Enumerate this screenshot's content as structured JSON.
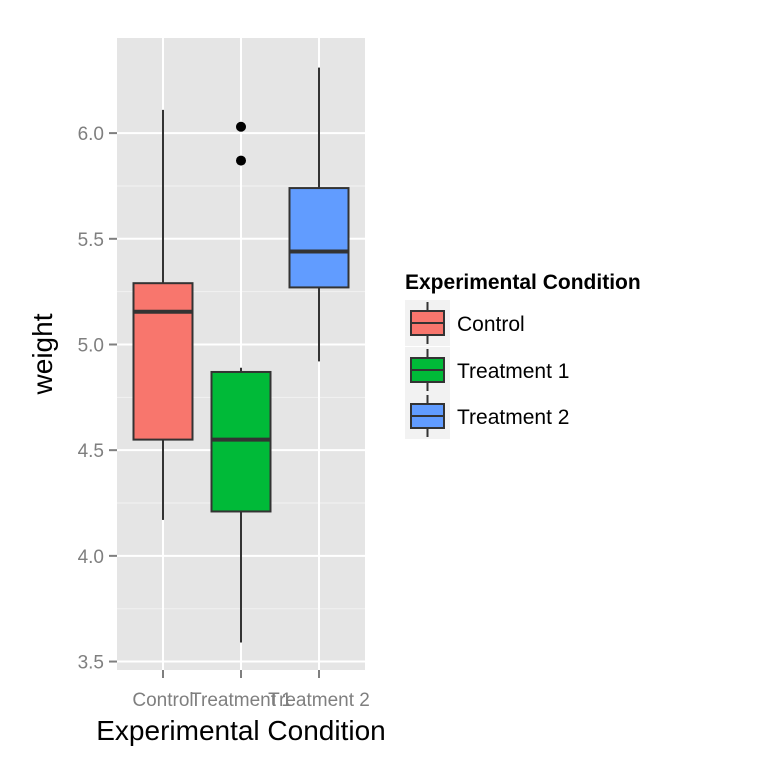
{
  "chart_data": {
    "type": "boxplot",
    "xlabel": "Experimental Condition",
    "ylabel": "weight",
    "ylim": [
      3.46,
      6.45
    ],
    "yticks": [
      3.5,
      4.0,
      4.5,
      5.0,
      5.5,
      6.0
    ],
    "ytick_labels": [
      "3.5",
      "4.0",
      "4.5",
      "5.0",
      "5.5",
      "6.0"
    ],
    "categories": [
      "Control",
      "Treatment 1",
      "Treatment 2"
    ],
    "grid": true,
    "legend": {
      "title": "Experimental Condition",
      "position": "right",
      "entries": [
        "Control",
        "Treatment 1",
        "Treatment 2"
      ]
    },
    "series": [
      {
        "name": "Control",
        "color": "#F8766D",
        "whisker_low": 4.17,
        "q1": 4.55,
        "median": 5.155,
        "q3": 5.29,
        "whisker_high": 6.11,
        "outliers": []
      },
      {
        "name": "Treatment 1",
        "color": "#00BA38",
        "whisker_low": 3.59,
        "q1": 4.21,
        "median": 4.55,
        "q3": 4.87,
        "whisker_high": 4.89,
        "outliers": [
          5.87,
          6.03
        ]
      },
      {
        "name": "Treatment 2",
        "color": "#619CFF",
        "whisker_low": 4.92,
        "q1": 5.27,
        "median": 5.44,
        "q3": 5.74,
        "whisker_high": 6.31,
        "outliers": []
      }
    ]
  }
}
